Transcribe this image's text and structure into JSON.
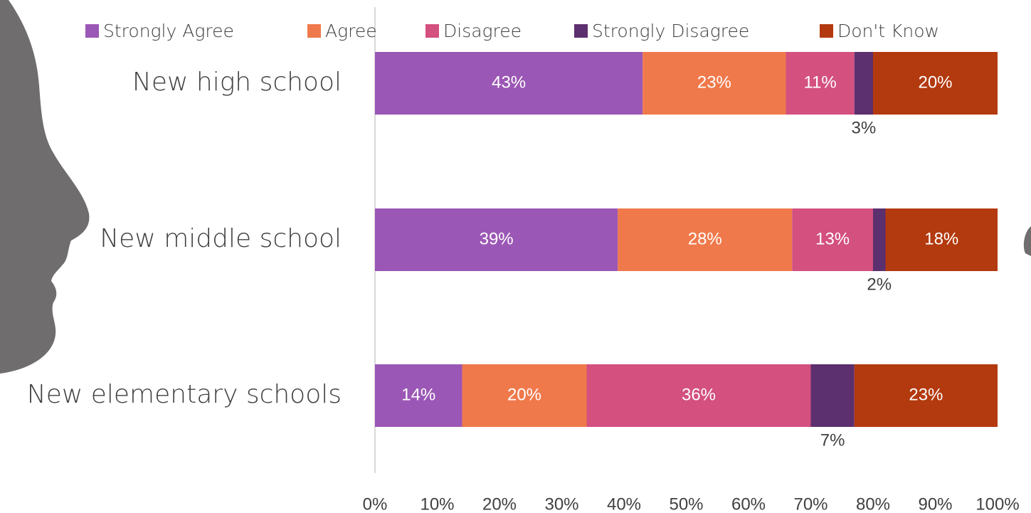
{
  "chart_data": {
    "type": "stacked-bar-horizontal",
    "categories": [
      "New high school",
      "New middle school",
      "New elementary schools"
    ],
    "series": [
      {
        "name": "Strongly Agree",
        "color": "#9b57b5",
        "values": [
          43,
          39,
          14
        ],
        "value_labels": [
          "43%",
          "39%",
          "14%"
        ]
      },
      {
        "name": "Agree",
        "color": "#f0794b",
        "values": [
          23,
          28,
          20
        ],
        "value_labels": [
          "23%",
          "28%",
          "20%"
        ]
      },
      {
        "name": "Disagree",
        "color": "#d3507f",
        "values": [
          11,
          13,
          36
        ],
        "value_labels": [
          "11%",
          "13%",
          "36%"
        ]
      },
      {
        "name": "Strongly Disagree",
        "color": "#5c2f6e",
        "values": [
          3,
          2,
          7
        ],
        "value_labels": [
          "3%",
          "2%",
          "7%"
        ]
      },
      {
        "name": "Don't Know",
        "color": "#b3390e",
        "values": [
          20,
          18,
          23
        ],
        "value_labels": [
          "20%",
          "18%",
          "23%"
        ]
      }
    ],
    "xlim": [
      0,
      100
    ],
    "xticks": [
      {
        "value": 0,
        "label": "0%"
      },
      {
        "value": 10,
        "label": "10%"
      },
      {
        "value": 20,
        "label": "20%"
      },
      {
        "value": 30,
        "label": "30%"
      },
      {
        "value": 40,
        "label": "40%"
      },
      {
        "value": 50,
        "label": "50%"
      },
      {
        "value": 60,
        "label": "60%"
      },
      {
        "value": 70,
        "label": "70%"
      },
      {
        "value": 80,
        "label": "80%"
      },
      {
        "value": 90,
        "label": "90%"
      },
      {
        "value": 100,
        "label": "100%"
      }
    ],
    "legend": "top",
    "grid": false
  }
}
